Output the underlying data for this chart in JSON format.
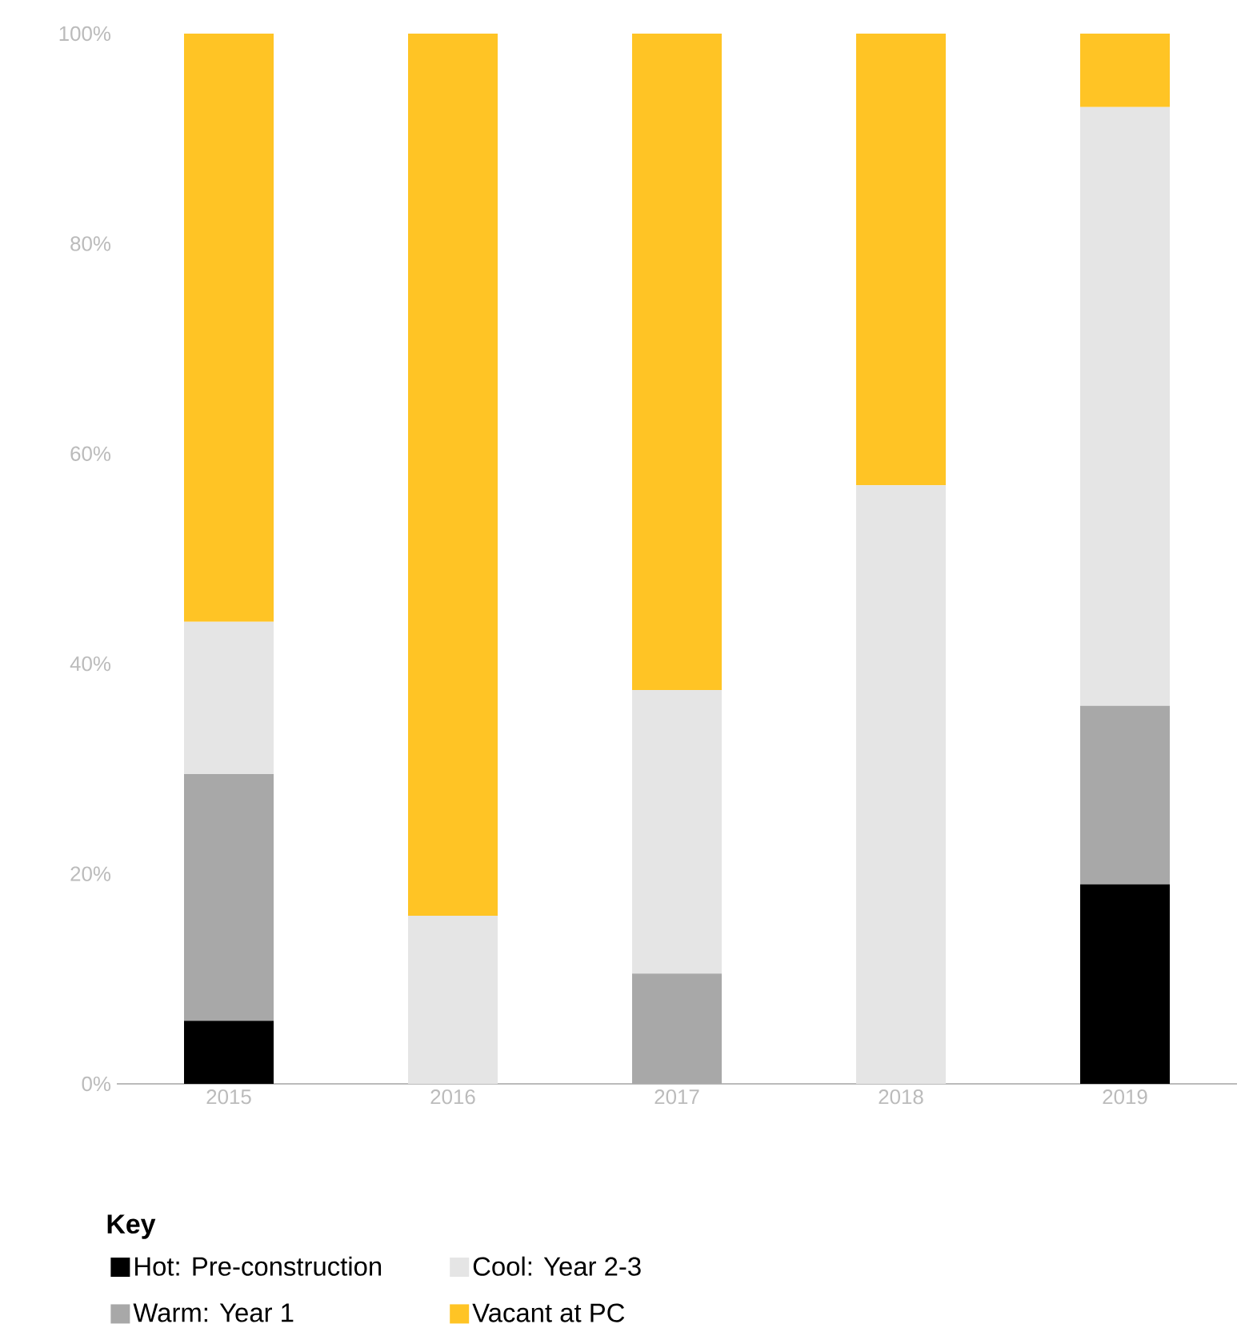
{
  "chart_data": {
    "type": "bar",
    "stacked": true,
    "categories": [
      "2015",
      "2016",
      "2017",
      "2018",
      "2019"
    ],
    "series": [
      {
        "name": "Hot: Pre-construction",
        "color": "#000000",
        "values": [
          6,
          0,
          0,
          0,
          19
        ]
      },
      {
        "name": "Warm: Year 1",
        "color": "#a8a8a8",
        "values": [
          23.5,
          0,
          10.5,
          0,
          17
        ]
      },
      {
        "name": "Cool: Year 2-3",
        "color": "#e5e5e5",
        "values": [
          14.5,
          16,
          27,
          57,
          57
        ]
      },
      {
        "name": "Vacant at PC",
        "color": "#ffc425",
        "values": [
          56,
          84,
          62.5,
          43,
          7
        ]
      }
    ],
    "ylim": [
      0,
      100
    ],
    "yticks": [
      {
        "value": 0,
        "label": "0%"
      },
      {
        "value": 20,
        "label": "20%"
      },
      {
        "value": 40,
        "label": "40%"
      },
      {
        "value": 60,
        "label": "60%"
      },
      {
        "value": 80,
        "label": "80%"
      },
      {
        "value": 100,
        "label": "100%"
      }
    ],
    "legend": "bottom",
    "legend_title": "Key",
    "grid": false
  }
}
